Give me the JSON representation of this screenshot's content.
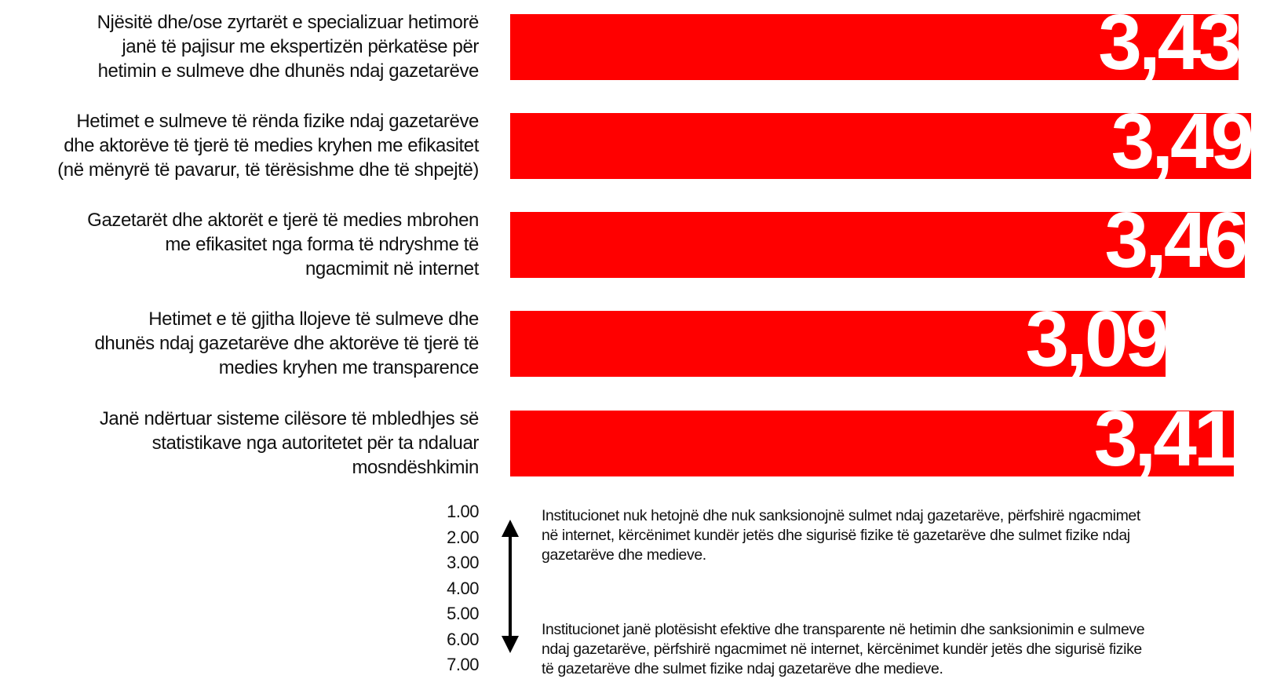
{
  "chart_data": {
    "type": "bar",
    "orientation": "horizontal",
    "categories": [
      "Njësitë dhe/ose zyrtarët e specializuar hetimorë janë të pajisur me ekspertizën përkatëse për hetimin e sulmeve dhe dhunës ndaj gazetarëve",
      "Hetimet e sulmeve të rënda fizike ndaj gazetarëve dhe aktorëve të tjerë të medies kryhen me efikasitet (në mënyrë të pavarur, të tërësishme dhe të shpejtë)",
      "Gazetarët dhe aktorët e tjerë të medies mbrohen me efikasitet nga forma të ndryshme të ngacmimit në internet",
      "Hetimet e të gjitha llojeve të sulmeve dhe dhunës ndaj gazetarëve dhe aktorëve të tjerë të medies kryhen me transparence",
      "Janë ndërtuar sisteme cilësore të mbledhjes së statistikave nga autoritetet për ta ndaluar mosndëshkimin"
    ],
    "category_lines": [
      [
        "Njësitë dhe/ose zyrtarët e specializuar hetimorë",
        "janë të pajisur me ekspertizën përkatëse për",
        "hetimin e sulmeve dhe dhunës ndaj gazetarëve"
      ],
      [
        "Hetimet e sulmeve të rënda fizike ndaj gazetarëve",
        "dhe aktorëve të tjerë të medies kryhen me efikasitet",
        "(në mënyrë të pavarur, të tërësishme dhe të shpejtë)"
      ],
      [
        "Gazetarët dhe aktorët e tjerë të medies mbrohen",
        "me efikasitet nga forma të ndryshme të",
        "ngacmimit në internet"
      ],
      [
        "Hetimet e të gjitha llojeve të sulmeve dhe",
        "dhunës ndaj gazetarëve dhe aktorëve të tjerë të",
        "medies kryhen me transparence"
      ],
      [
        "Janë ndërtuar sisteme cilësore të mbledhjes së",
        "statistikave nga autoritetet për ta ndaluar",
        "mosndëshkimin"
      ]
    ],
    "values": [
      3.43,
      3.49,
      3.46,
      3.09,
      3.41
    ],
    "value_labels": [
      "3,43",
      "3,49",
      "3,46",
      "3,09",
      "3,41"
    ],
    "xlim": [
      0,
      3.5
    ],
    "bar_color": "#ff0000",
    "value_label_color": "#ffffff",
    "grid": false,
    "legend": "none"
  },
  "scale": {
    "ticks": [
      "1.00",
      "2.00",
      "3.00",
      "4.00",
      "5.00",
      "6.00",
      "7.00"
    ],
    "arrow_icon": "double-arrow-vertical-icon",
    "low_description": "Institucionet nuk hetojnë dhe nuk sanksionojnë sulmet ndaj gazetarëve, përfshirë ngacmimet në internet, kërcënimet kundër jetës dhe sigurisë fizike të gazetarëve dhe sulmet fizike ndaj gazetarëve dhe medieve.",
    "low_lines": [
      "Institucionet nuk hetojnë dhe nuk sanksionojnë sulmet ndaj gazetarëve, përfshirë ngacmimet",
      "në internet, kërcënimet kundër jetës dhe sigurisë fizike të gazetarëve dhe sulmet fizike ndaj",
      "gazetarëve dhe medieve."
    ],
    "high_description": "Institucionet janë plotësisht efektive dhe transparente në hetimin dhe sanksionimin e sulmeve ndaj gazetarëve, përfshirë ngacmimet në internet, kërcënimet kundër jetës dhe sigurisë fizike të gazetarëve dhe sulmet fizike ndaj gazetarëve dhe medieve.",
    "high_lines": [
      "Institucionet janë plotësisht efektive dhe transparente në hetimin dhe sanksionimin e sulmeve",
      "ndaj gazetarëve, përfshirë ngacmimet në internet, kërcënimet kundër jetës dhe sigurisë fizike",
      "të gazetarëve dhe sulmet fizike ndaj gazetarëve dhe medieve."
    ]
  }
}
